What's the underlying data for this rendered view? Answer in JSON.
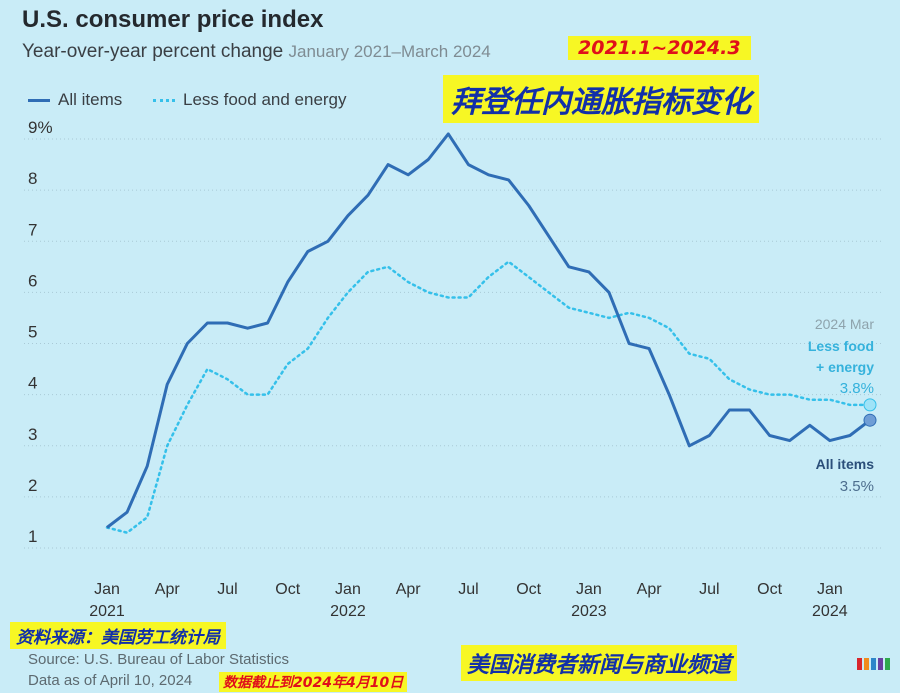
{
  "title": "U.S. consumer price index",
  "subtitle": "Year-over-year percent change",
  "subtitle_range": "January 2021–March 2024",
  "annotation_dates": "2021.1~2024.3",
  "annotation_headline": "拜登任内通胀指标变化",
  "annotation_source_cn": "资料来源：美国劳工统计局",
  "annotation_cutoff_cn": "数据截止到2024年4月10日",
  "annotation_brand_cn": "美国消费者新闻与商业频道",
  "source": "Source: U.S. Bureau of Labor Statistics",
  "data_as_of": "Data as of April 10, 2024",
  "end_labels": {
    "date": "2024 Mar",
    "core_line1": "Less food",
    "core_line2": "+ energy",
    "core_value": "3.8%",
    "all_label": "All items",
    "all_value": "3.5%"
  },
  "colors": {
    "all_items": "#2f6db5",
    "core": "#35c0ea",
    "background": "#c9ecf7",
    "grid": "#a9c9d6"
  },
  "chart_data": {
    "type": "line",
    "title": "U.S. consumer price index",
    "subtitle": "Year-over-year percent change January 2021–March 2024",
    "ylim": [
      1,
      9
    ],
    "y_ticks": [
      "1",
      "2",
      "3",
      "4",
      "5",
      "6",
      "7",
      "8",
      "9%"
    ],
    "x_ticks": [
      {
        "month": "Jan",
        "year": "2021",
        "index": 0
      },
      {
        "month": "Apr",
        "year": "",
        "index": 3
      },
      {
        "month": "Jul",
        "year": "",
        "index": 6
      },
      {
        "month": "Oct",
        "year": "",
        "index": 9
      },
      {
        "month": "Jan",
        "year": "2022",
        "index": 12
      },
      {
        "month": "Apr",
        "year": "",
        "index": 15
      },
      {
        "month": "Jul",
        "year": "",
        "index": 18
      },
      {
        "month": "Oct",
        "year": "",
        "index": 21
      },
      {
        "month": "Jan",
        "year": "2023",
        "index": 24
      },
      {
        "month": "Apr",
        "year": "",
        "index": 27
      },
      {
        "month": "Jul",
        "year": "",
        "index": 30
      },
      {
        "month": "Oct",
        "year": "",
        "index": 33
      },
      {
        "month": "Jan",
        "year": "2024",
        "index": 36
      }
    ],
    "x": [
      "2021-01",
      "2021-02",
      "2021-03",
      "2021-04",
      "2021-05",
      "2021-06",
      "2021-07",
      "2021-08",
      "2021-09",
      "2021-10",
      "2021-11",
      "2021-12",
      "2022-01",
      "2022-02",
      "2022-03",
      "2022-04",
      "2022-05",
      "2022-06",
      "2022-07",
      "2022-08",
      "2022-09",
      "2022-10",
      "2022-11",
      "2022-12",
      "2023-01",
      "2023-02",
      "2023-03",
      "2023-04",
      "2023-05",
      "2023-06",
      "2023-07",
      "2023-08",
      "2023-09",
      "2023-10",
      "2023-11",
      "2023-12",
      "2024-01",
      "2024-02",
      "2024-03"
    ],
    "grid": true,
    "legend": "top-left",
    "series": [
      {
        "name": "All items",
        "style": "solid",
        "values": [
          1.4,
          1.7,
          2.6,
          4.2,
          5.0,
          5.4,
          5.4,
          5.3,
          5.4,
          6.2,
          6.8,
          7.0,
          7.5,
          7.9,
          8.5,
          8.3,
          8.6,
          9.1,
          8.5,
          8.3,
          8.2,
          7.7,
          7.1,
          6.5,
          6.4,
          6.0,
          5.0,
          4.9,
          4.0,
          3.0,
          3.2,
          3.7,
          3.7,
          3.2,
          3.1,
          3.4,
          3.1,
          3.2,
          3.5
        ]
      },
      {
        "name": "Less food and energy",
        "style": "dotted",
        "values": [
          1.4,
          1.3,
          1.6,
          3.0,
          3.8,
          4.5,
          4.3,
          4.0,
          4.0,
          4.6,
          4.9,
          5.5,
          6.0,
          6.4,
          6.5,
          6.2,
          6.0,
          5.9,
          5.9,
          6.3,
          6.6,
          6.3,
          6.0,
          5.7,
          5.6,
          5.5,
          5.6,
          5.5,
          5.3,
          4.8,
          4.7,
          4.3,
          4.1,
          4.0,
          4.0,
          3.9,
          3.9,
          3.8,
          3.8
        ]
      }
    ]
  }
}
